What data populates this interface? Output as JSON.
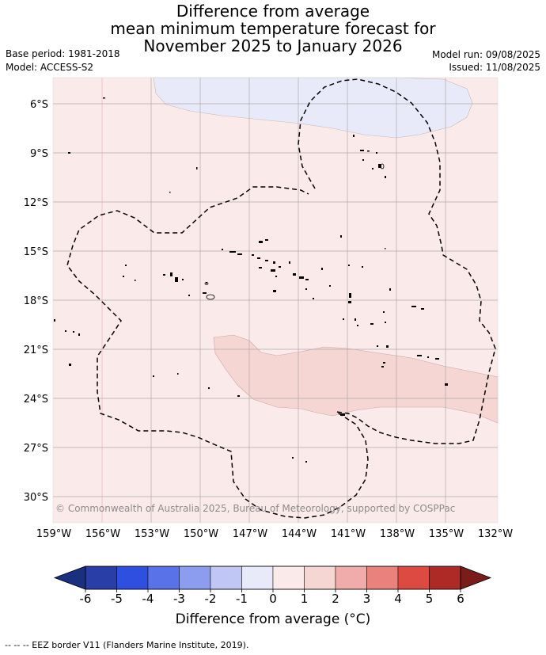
{
  "title": {
    "line1": "Difference from average",
    "line2": "mean minimum temperature forecast for",
    "line3": "November 2025 to January 2026"
  },
  "meta": {
    "base_period": "Base period: 1981-2018",
    "model": "Model: ACCESS-S2",
    "model_run": "Model run: 09/08/2025",
    "issued": "Issued: 11/08/2025"
  },
  "map": {
    "lat_labels": [
      "6°S",
      "9°S",
      "12°S",
      "15°S",
      "18°S",
      "21°S",
      "24°S",
      "27°S",
      "30°S"
    ],
    "lon_labels": [
      "159°W",
      "156°W",
      "153°W",
      "150°W",
      "147°W",
      "144°W",
      "141°W",
      "138°W",
      "135°W",
      "132°W"
    ],
    "credit": "© Commonwealth of Australia 2025, Bureau of Meteorology, supported by COSPPac",
    "colors": {
      "background_anomaly": "#fbeaea",
      "cool_anomaly": "#e8eafa",
      "warm_anomaly": "#f5d6d3",
      "grid": "#b0a8a8",
      "eez": "#000000"
    }
  },
  "colorbar": {
    "ticks": [
      "-6",
      "-5",
      "-4",
      "-3",
      "-2",
      "-1",
      "0",
      "1",
      "2",
      "3",
      "4",
      "5",
      "6"
    ],
    "colors": [
      "#2a3ea8",
      "#2f4fe0",
      "#5a72e8",
      "#8c9cef",
      "#c0c7f5",
      "#e8eafa",
      "#fbeaea",
      "#f5d6d3",
      "#efacaa",
      "#e9827d",
      "#dc4a42",
      "#ad2a26"
    ],
    "under_color": "#1b2f80",
    "over_color": "#7a1c1a",
    "label": "Difference from average (°C)"
  },
  "footer": {
    "legend_text": "--  --  -- EEZ border V11 (Flanders Marine Institute, 2019)."
  }
}
